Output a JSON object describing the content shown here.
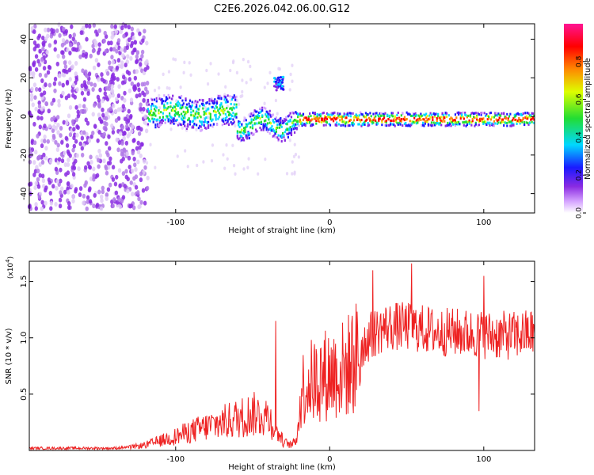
{
  "figure_title": "C2E6.2026.042.06.00.G12",
  "chart_data": [
    {
      "type": "heatmap",
      "title": "C2E6.2026.042.06.00.G12",
      "xlabel": "Height of straight line (km)",
      "ylabel": "Frequency (Hz)",
      "xlim": [
        -195,
        133
      ],
      "ylim": [
        -50,
        48
      ],
      "xticks": [
        -100,
        0,
        100
      ],
      "yticks": [
        -40,
        -20,
        0,
        20,
        40
      ],
      "xtick_labels": [
        "-100",
        "0",
        "100"
      ],
      "ytick_labels": [
        "-40",
        "-20",
        "0",
        "20",
        "40"
      ],
      "colorbar": {
        "label": "Normalized spectral amplitude",
        "range": [
          0.0,
          1.0
        ],
        "ticks": [
          0.0,
          0.2,
          0.4,
          0.6,
          0.8
        ],
        "tick_labels": [
          "0.0",
          "0.2",
          "0.4",
          "0.6",
          "0.8"
        ],
        "colormap": "rainbow"
      },
      "features": [
        {
          "name": "noise-floor",
          "x_range": [
            -195,
            -118
          ],
          "y_range": [
            -48,
            48
          ],
          "amplitude": 0.05
        },
        {
          "name": "main-band",
          "x_range": [
            -118,
            133
          ],
          "center_hz": 0,
          "amplitude_peak": 1.0
        },
        {
          "name": "blob",
          "x": -33,
          "y": 17,
          "amplitude": 0.3
        }
      ]
    },
    {
      "type": "line",
      "xlabel": "Height of straight line (km)",
      "ylabel": "SNR (10 * v/v)",
      "exponent_label": "(x10",
      "exponent_sup": "4",
      "exponent_close": ")",
      "xlim": [
        -195,
        133
      ],
      "ylim": [
        0,
        1.68
      ],
      "xticks": [
        -100,
        0,
        100
      ],
      "yticks": [
        0.5,
        1.0,
        1.5
      ],
      "xtick_labels": [
        "-100",
        "0",
        "100"
      ],
      "ytick_labels": [
        "0.5",
        "1.0",
        "1.5"
      ],
      "series": [
        {
          "name": "SNR",
          "color": "#ee2222",
          "x": [
            -195,
            -180,
            -160,
            -140,
            -130,
            -120,
            -110,
            -100,
            -90,
            -80,
            -70,
            -60,
            -50,
            -40,
            -35,
            -30,
            -25,
            -22,
            -20,
            -18,
            -15,
            -10,
            -5,
            0,
            5,
            10,
            15,
            20,
            25,
            30,
            35,
            40,
            50,
            60,
            70,
            80,
            90,
            100,
            110,
            120,
            133
          ],
          "y": [
            0.02,
            0.02,
            0.02,
            0.02,
            0.03,
            0.05,
            0.09,
            0.13,
            0.18,
            0.22,
            0.26,
            0.3,
            0.34,
            0.32,
            0.2,
            0.08,
            0.05,
            0.09,
            0.3,
            0.58,
            0.62,
            0.66,
            0.7,
            0.72,
            0.74,
            0.76,
            0.84,
            0.92,
            1.0,
            1.05,
            1.09,
            1.1,
            1.1,
            1.08,
            1.05,
            1.05,
            1.04,
            1.03,
            1.02,
            1.02,
            1.05
          ]
        }
      ],
      "spikes": [
        {
          "x": 28,
          "y": 1.6
        },
        {
          "x": 53,
          "y": 1.66
        },
        {
          "x": 97,
          "y": 0.35
        },
        {
          "x": -35,
          "y": 1.15
        },
        {
          "x": 100,
          "y": 1.55
        }
      ]
    }
  ],
  "colors": {
    "line": "#ee2222",
    "noise": "#7a2ae0",
    "axis": "#000000"
  }
}
